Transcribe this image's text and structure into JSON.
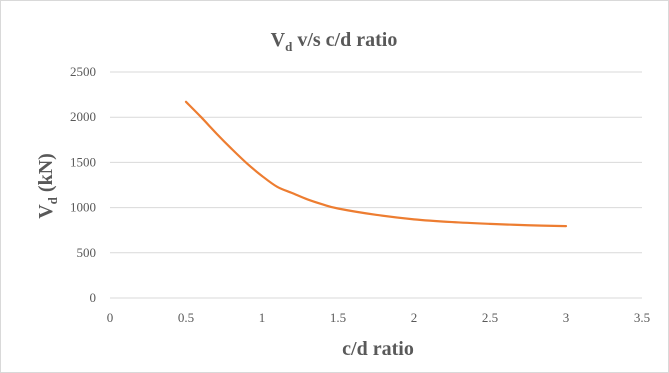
{
  "chart_data": {
    "type": "line",
    "title": {
      "main": "V",
      "sub": "d",
      "rest": " v/s c/d ratio"
    },
    "xlabel": "c/d ratio",
    "ylabel": {
      "main": "V",
      "sub": "d",
      "rest": " (kN)"
    },
    "xlim": [
      0,
      3.5
    ],
    "ylim": [
      0,
      2500
    ],
    "x_ticks": [
      "0",
      "0.5",
      "1",
      "1.5",
      "2",
      "2.5",
      "3",
      "3.5"
    ],
    "y_ticks": [
      "0",
      "500",
      "1000",
      "1500",
      "2000",
      "2500"
    ],
    "grid": "horizontal",
    "legend": "none",
    "series": [
      {
        "color": "#ED7D31",
        "x": [
          0.5,
          0.6,
          0.7,
          0.8,
          0.9,
          1.0,
          1.1,
          1.2,
          1.3,
          1.4,
          1.5,
          1.75,
          2.0,
          2.25,
          2.5,
          2.75,
          3.0
        ],
        "y": [
          2170,
          2000,
          1820,
          1650,
          1490,
          1350,
          1230,
          1160,
          1090,
          1035,
          990,
          920,
          870,
          840,
          820,
          805,
          795
        ]
      }
    ]
  }
}
